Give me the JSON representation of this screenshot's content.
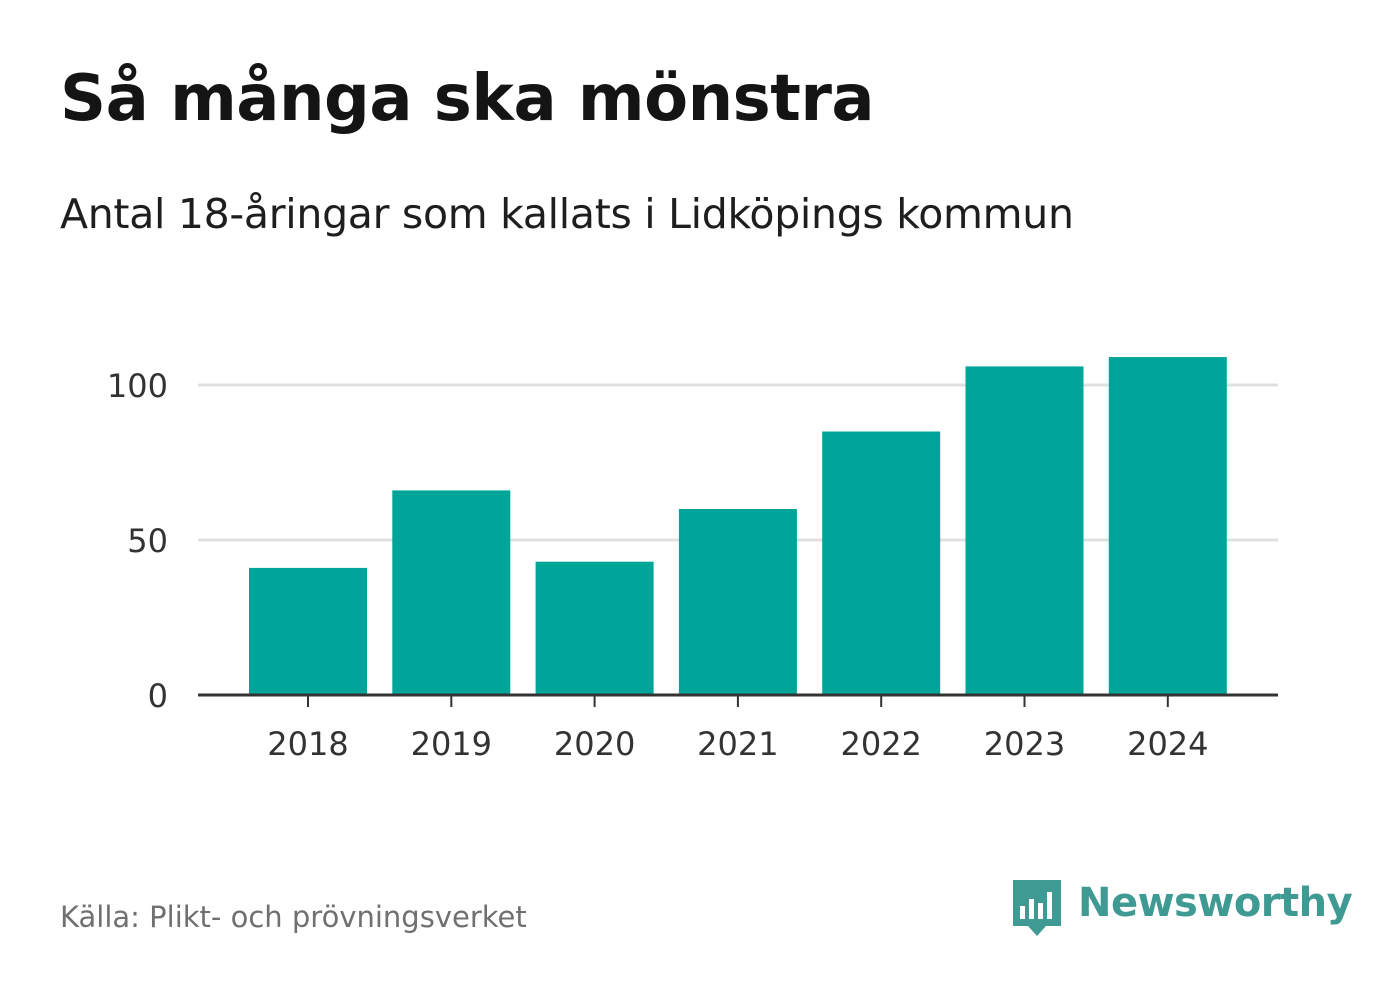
{
  "header": {
    "title": "Så många ska mönstra",
    "subtitle": "Antal 18-åringar som kallats i Lidköpings kommun"
  },
  "footer": {
    "source": "Källa: Plikt- och prövningsverket",
    "brand_name": "Newsworthy",
    "brand_icon": "bar-chart-speech-bubble-icon"
  },
  "colors": {
    "bar": "#00a499",
    "grid": "#e0e0e0",
    "axis": "#333333",
    "brand": "#3f9a93"
  },
  "chart_data": {
    "type": "bar",
    "title": "Så många ska mönstra",
    "subtitle": "Antal 18-åringar som kallats i Lidköpings kommun",
    "xlabel": "",
    "ylabel": "",
    "categories": [
      "2018",
      "2019",
      "2020",
      "2021",
      "2022",
      "2023",
      "2024"
    ],
    "values": [
      41,
      66,
      43,
      60,
      85,
      106,
      109
    ],
    "ylim": [
      0,
      125
    ],
    "yticks": [
      0,
      50,
      100
    ],
    "grid": true,
    "legend": "none"
  }
}
